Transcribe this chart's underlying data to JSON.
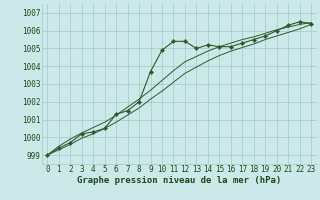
{
  "x": [
    0,
    1,
    2,
    3,
    4,
    5,
    6,
    7,
    8,
    9,
    10,
    11,
    12,
    13,
    14,
    15,
    16,
    17,
    18,
    19,
    20,
    21,
    22,
    23
  ],
  "line_main": [
    999.0,
    999.4,
    999.7,
    1000.2,
    1000.3,
    1000.5,
    1001.3,
    1001.5,
    1002.0,
    1003.7,
    1004.9,
    1005.4,
    1005.4,
    1005.0,
    1005.2,
    1005.1,
    1005.1,
    1005.3,
    1005.5,
    1005.7,
    1006.0,
    1006.3,
    1006.5,
    1006.4
  ],
  "line_upper": [
    999.0,
    999.5,
    999.9,
    1000.25,
    1000.55,
    1000.85,
    1001.25,
    1001.7,
    1002.15,
    1002.65,
    1003.2,
    1003.75,
    1004.25,
    1004.55,
    1004.85,
    1005.1,
    1005.3,
    1005.5,
    1005.65,
    1005.85,
    1006.05,
    1006.2,
    1006.35,
    1006.45
  ],
  "line_lower": [
    999.0,
    999.3,
    999.6,
    999.95,
    1000.2,
    1000.5,
    1000.85,
    1001.25,
    1001.65,
    1002.15,
    1002.6,
    1003.1,
    1003.6,
    1003.95,
    1004.3,
    1004.6,
    1004.85,
    1005.05,
    1005.25,
    1005.5,
    1005.7,
    1005.9,
    1006.1,
    1006.35
  ],
  "ylim_min": 998.5,
  "ylim_max": 1007.5,
  "yticks": [
    999,
    1000,
    1001,
    1002,
    1003,
    1004,
    1005,
    1006,
    1007
  ],
  "bg_color": "#cce8e8",
  "grid_color": "#99cccc",
  "line_color": "#2d5a2d",
  "marker_color": "#2d5a2d",
  "xlabel": "Graphe pression niveau de la mer (hPa)",
  "xlabel_fontsize": 6.5,
  "xlabel_color": "#1a4a1a",
  "tick_fontsize": 5.5,
  "tick_color": "#1a4a1a"
}
